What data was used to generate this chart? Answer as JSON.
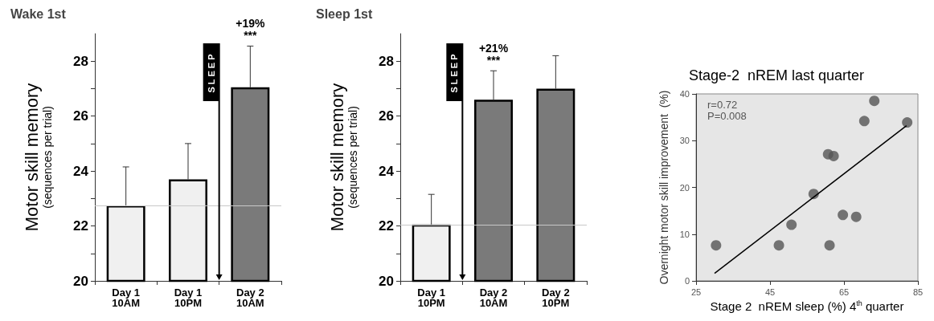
{
  "chart_data": [
    {
      "type": "bar",
      "title": "Wake 1st",
      "ylabel": "Motor skill memory\n(sequences per trial)",
      "categories": [
        "Day 1\n10AM",
        "Day 1\n10PM",
        "Day 2\n10AM"
      ],
      "values": [
        22.75,
        23.7,
        27.05
      ],
      "colors": [
        "#f0f0f0",
        "#f0f0f0",
        "#7a7a7a"
      ],
      "errors": [
        [
          22.75,
          24.15
        ],
        [
          23.7,
          25.0
        ],
        [
          27.05,
          28.55
        ]
      ],
      "ylim": [
        20,
        29
      ],
      "yticks": [
        20,
        {
          "value": 21,
          "label": null
        },
        22,
        {
          "value": 23,
          "label": null
        },
        24,
        {
          "value": 25,
          "label": null
        },
        26,
        {
          "value": 27,
          "label": null
        },
        28
      ],
      "ref_lines": [
        {
          "axis": "y",
          "value": 22.75,
          "color": "#c8c8c8"
        }
      ],
      "annotations": [
        {
          "text": "+19%\n***",
          "x": "Day 2\n10AM",
          "y": 28.55
        },
        "SLEEP"
      ],
      "grid": false
    },
    {
      "type": "bar",
      "title": "Sleep 1st",
      "ylabel": "Motor skill memory\n(sequences per trial)",
      "categories": [
        "Day 1\n10PM",
        "Day 2\n10AM",
        "Day 2\n10PM"
      ],
      "values": [
        22.05,
        26.6,
        27.0
      ],
      "colors": [
        "#f0f0f0",
        "#7a7a7a",
        "#7a7a7a"
      ],
      "errors": [
        [
          22.05,
          23.15
        ],
        [
          26.6,
          27.65
        ],
        [
          27.0,
          28.2
        ]
      ],
      "ylim": [
        20,
        29
      ],
      "yticks": [
        20,
        {
          "value": 21,
          "label": null
        },
        22,
        {
          "value": 23,
          "label": null
        },
        24,
        {
          "value": 25,
          "label": null
        },
        26,
        {
          "value": 27,
          "label": null
        },
        28
      ],
      "ref_lines": [
        {
          "axis": "y",
          "value": 22.05,
          "color": "#c8c8c8"
        }
      ],
      "annotations": [
        {
          "text": "+21%\n***",
          "x": "Day 2\n10AM",
          "y": 27.65
        },
        "SLEEP"
      ],
      "grid": false
    },
    {
      "type": "scatter",
      "title": "Stage-2  nREM last quarter",
      "xlabel": "Stage 2  nREM sleep (%) 4$^{th}$ quarter",
      "ylabel": "Overnight motor skill improvement  (%)",
      "series": [
        {
          "type": "scatter",
          "color": "#555555",
          "marker": "circle",
          "x": [
            30.4,
            47.4,
            50.8,
            56.8,
            60.7,
            62.2,
            61.1,
            64.7,
            68.3,
            70.5,
            73.2,
            82.1
          ],
          "values": [
            7.6,
            7.6,
            12.0,
            18.6,
            27.1,
            26.7,
            7.6,
            14.1,
            13.7,
            34.2,
            38.5,
            33.9
          ]
        },
        {
          "type": "line",
          "color": "#000000",
          "marker": "none",
          "x": [
            30.0,
            81.9
          ],
          "values": [
            1.6,
            33.2
          ]
        }
      ],
      "xlim": [
        25,
        85
      ],
      "xticks": [
        25,
        45,
        65,
        85
      ],
      "ylim": [
        0,
        40
      ],
      "yticks": [
        0,
        10,
        20,
        30,
        40
      ],
      "annotations": [
        "r=0.72",
        "P=0.008"
      ],
      "grid": false
    }
  ]
}
